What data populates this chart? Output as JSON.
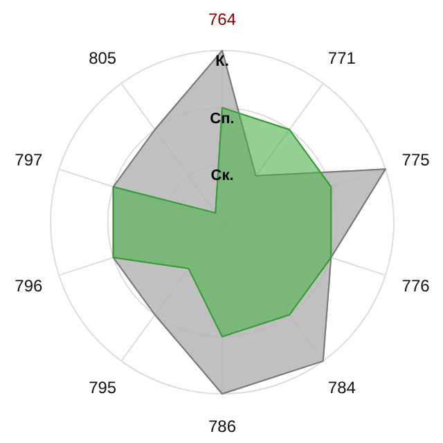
{
  "chart_data": {
    "type": "radar",
    "categories": [
      "764",
      "771",
      "775",
      "776",
      "784",
      "786",
      "795",
      "796",
      "797",
      "805"
    ],
    "series": [
      {
        "color": "#b5b5b5",
        "values": [
          3,
          1,
          3,
          2,
          3,
          3,
          2,
          2,
          2,
          2
        ]
      },
      {
        "color": "#4cb04c",
        "values": [
          2,
          2,
          2,
          2,
          2,
          2,
          1,
          2,
          2,
          0.2
        ]
      }
    ],
    "ylim": [
      0,
      3
    ],
    "yticks": [
      {
        "value": 1,
        "label": "Ск."
      },
      {
        "value": 2,
        "label": "Сп."
      },
      {
        "value": 3,
        "label": "К."
      }
    ],
    "grid": true
  }
}
